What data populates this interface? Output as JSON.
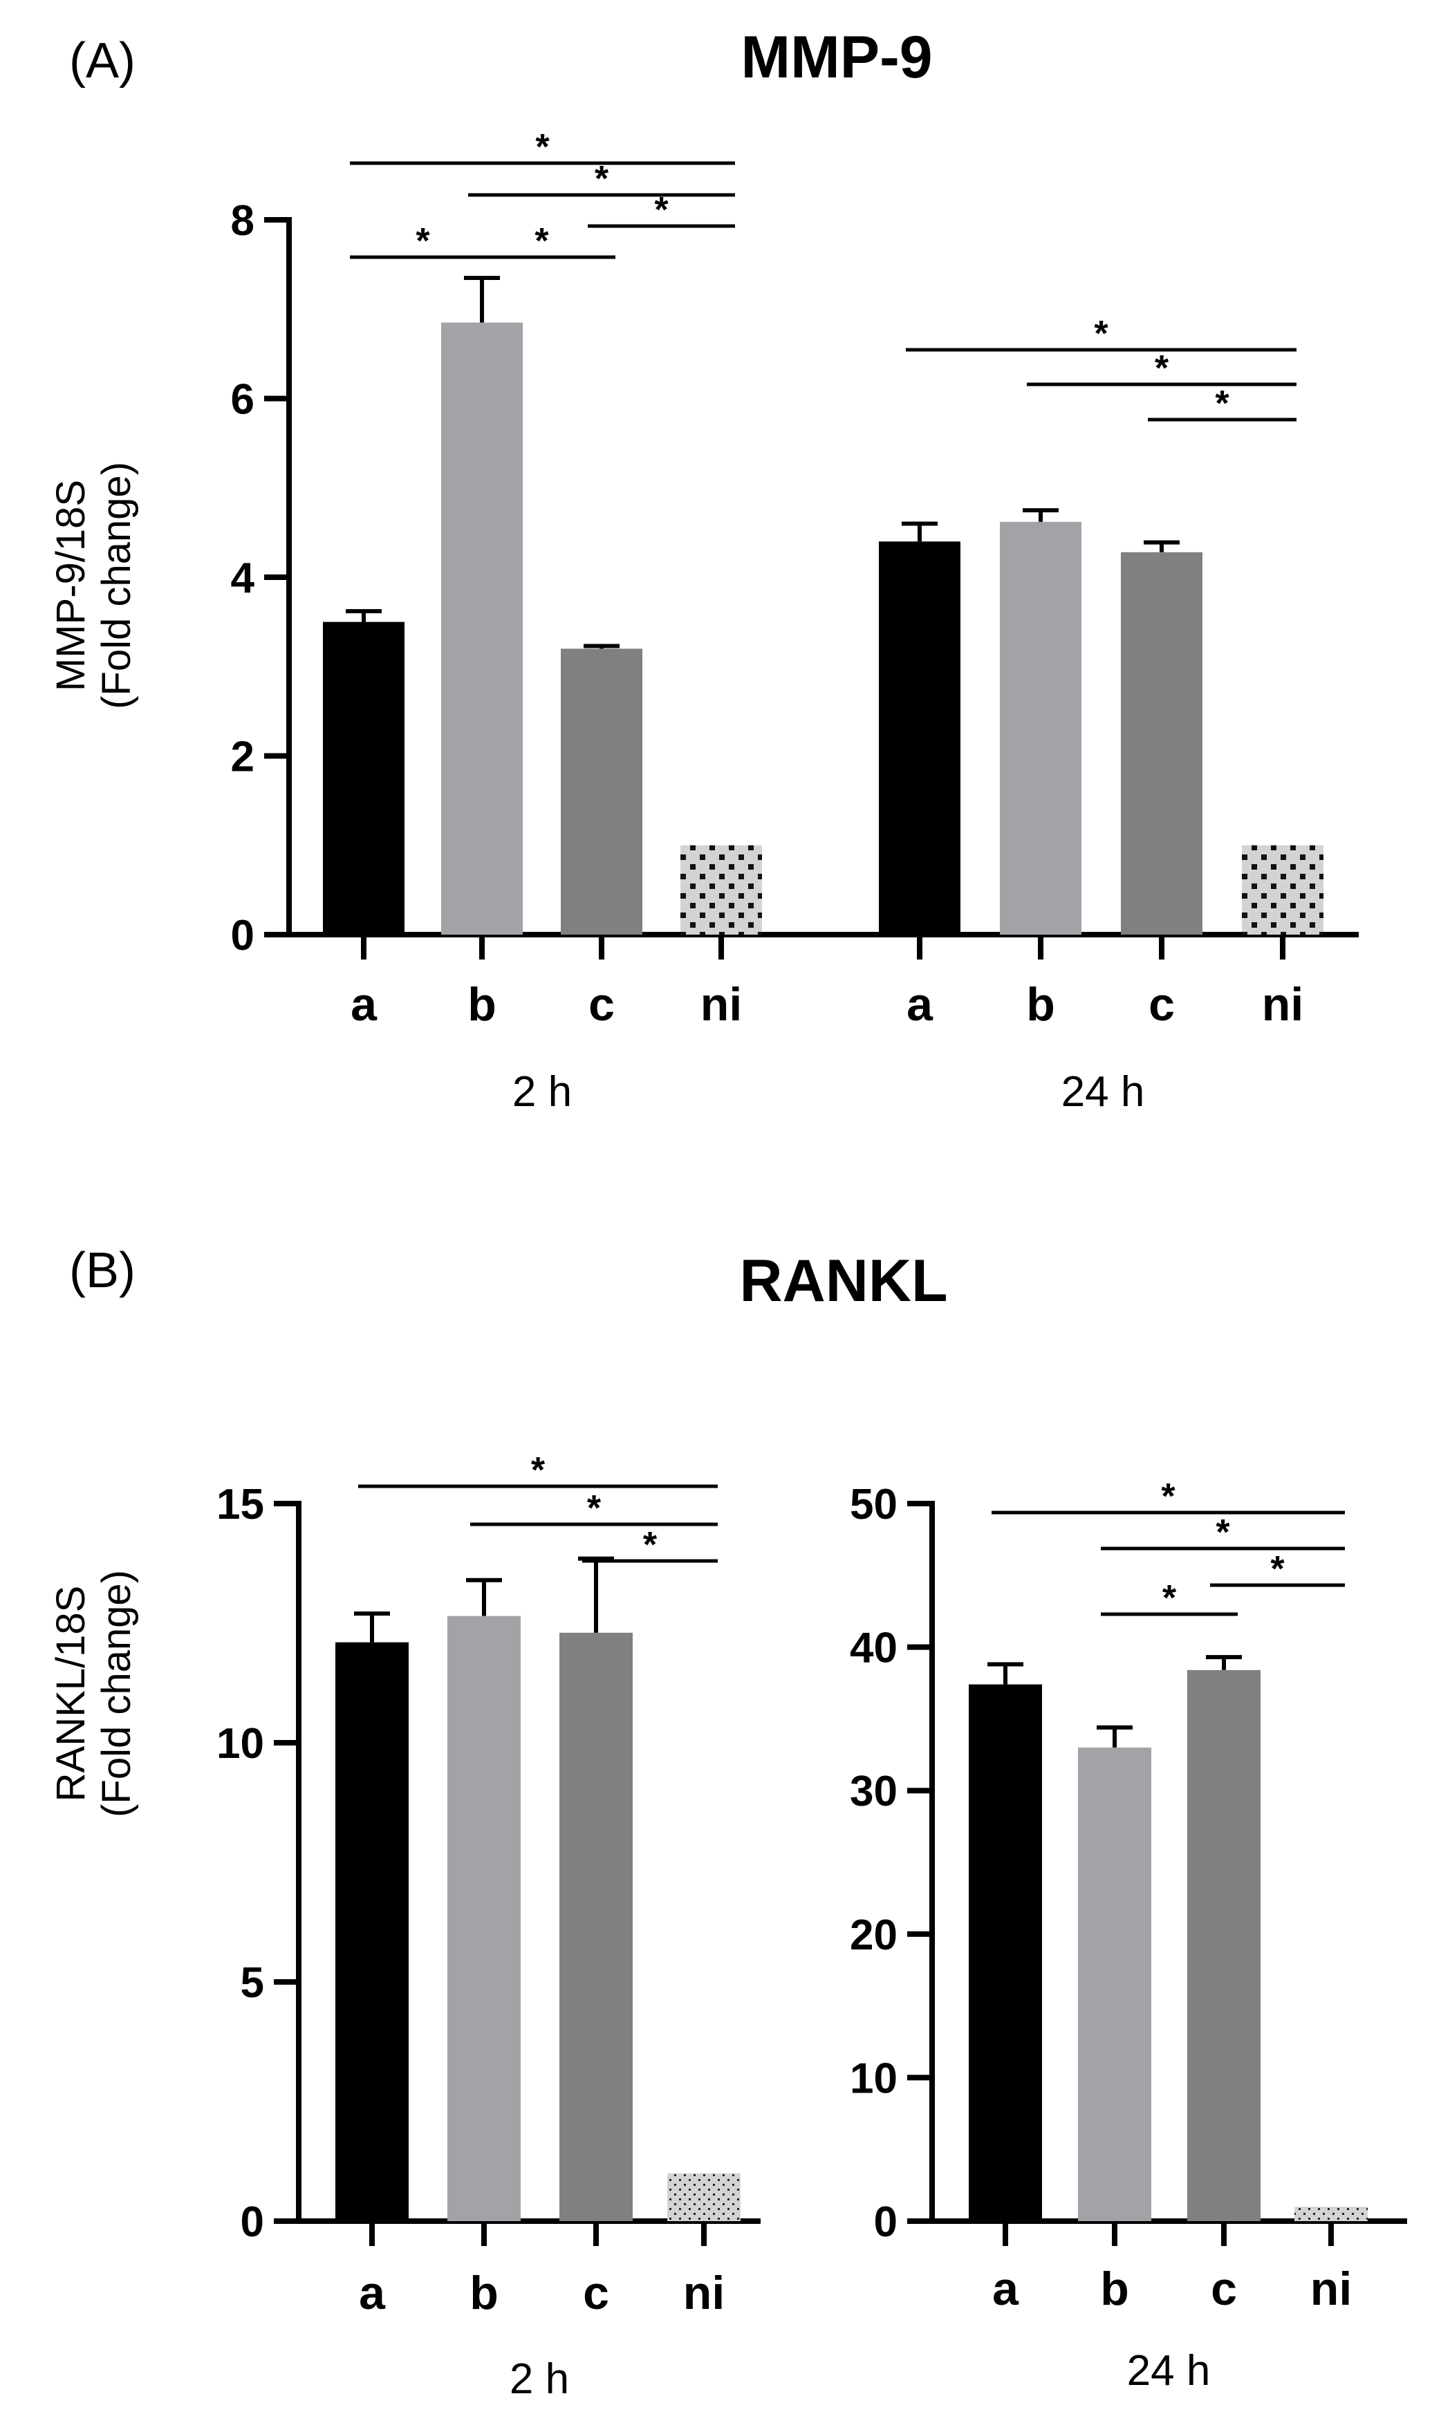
{
  "figure": {
    "panel_a_label": "(A)",
    "panel_b_label": "(B)",
    "colors": {
      "a": "#000000",
      "b": "#a3a2a7",
      "c": "#808080",
      "ni": "#d3d3d3",
      "ni_dots": "#111111"
    }
  },
  "chart_data": [
    {
      "type": "bar",
      "title": "MMP-9",
      "ylabel": [
        "MMP-9/18S",
        "(Fold change)"
      ],
      "xlabel": "",
      "ylim": [
        0,
        8
      ],
      "yticks": [
        0,
        2,
        4,
        6,
        8
      ],
      "categories": [
        "a",
        "b",
        "c",
        "ni"
      ],
      "groups": [
        {
          "name": "2 h",
          "values": [
            3.5,
            6.85,
            3.2,
            1.0
          ],
          "errors": [
            0.12,
            0.5,
            0.03,
            0
          ],
          "significance": [
            {
              "from": "a",
              "to": "ni",
              "label": "*"
            },
            {
              "from": "b",
              "to": "ni",
              "label": "*"
            },
            {
              "from": "c",
              "to": "ni",
              "label": "*"
            },
            {
              "from": "a",
              "to": "b",
              "label": "*"
            },
            {
              "from": "b",
              "to": "c",
              "label": "*"
            }
          ]
        },
        {
          "name": "24 h",
          "values": [
            4.4,
            4.62,
            4.28,
            1.0
          ],
          "errors": [
            0.2,
            0.13,
            0.11,
            0
          ],
          "significance": [
            {
              "from": "a",
              "to": "ni",
              "label": "*"
            },
            {
              "from": "b",
              "to": "ni",
              "label": "*"
            },
            {
              "from": "c",
              "to": "ni",
              "label": "*"
            }
          ]
        }
      ]
    },
    {
      "type": "bar",
      "title": "RANKL",
      "ylabel": [
        "RANKL/18S",
        "(Fold change)"
      ],
      "group": "2 h",
      "categories": [
        "a",
        "b",
        "c",
        "ni"
      ],
      "values": [
        12.1,
        12.65,
        12.3,
        1.0
      ],
      "errors": [
        0.6,
        0.75,
        1.55,
        0
      ],
      "ylim": [
        0,
        15
      ],
      "yticks": [
        0,
        5,
        10,
        15
      ],
      "significance": [
        {
          "from": "a",
          "to": "ni",
          "label": "*"
        },
        {
          "from": "b",
          "to": "ni",
          "label": "*"
        },
        {
          "from": "c",
          "to": "ni",
          "label": "*"
        }
      ]
    },
    {
      "type": "bar",
      "title": "RANKL",
      "group": "24 h",
      "categories": [
        "a",
        "b",
        "c",
        "ni"
      ],
      "values": [
        37.4,
        33.0,
        38.4,
        1.0
      ],
      "errors": [
        1.4,
        1.4,
        0.9,
        0
      ],
      "ylim": [
        0,
        50
      ],
      "yticks": [
        0,
        10,
        20,
        30,
        40,
        50
      ],
      "significance": [
        {
          "from": "a",
          "to": "ni",
          "label": "*"
        },
        {
          "from": "b",
          "to": "ni",
          "label": "*"
        },
        {
          "from": "c",
          "to": "ni",
          "label": "*"
        },
        {
          "from": "b",
          "to": "c",
          "label": "*"
        }
      ]
    }
  ]
}
